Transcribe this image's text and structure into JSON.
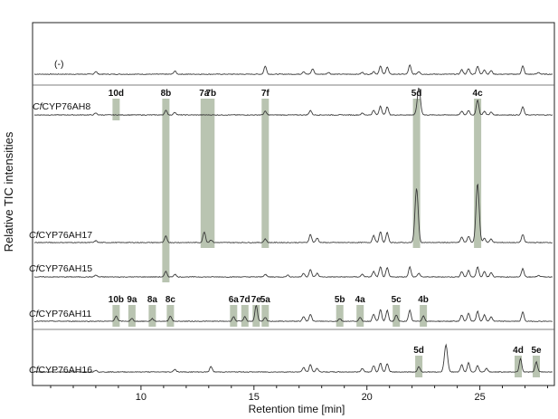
{
  "chart_data": {
    "type": "line",
    "xlabel": "Retention time [min]",
    "ylabel": "Relative TIC intensities",
    "xlim": [
      5.2,
      28.3
    ],
    "x_ticks": [
      10,
      15,
      20,
      25
    ],
    "x_tick_labels": [
      "10",
      "15",
      "20",
      "25"
    ],
    "grid": false,
    "legend": "none",
    "trace_color": "#3a3a3a",
    "band_color": "#b9c4b1",
    "series": [
      {
        "name": "(-)",
        "name_prefix": "",
        "name_suffix": "(-)",
        "baseline": 0.0,
        "peaks": [
          [
            8.0,
            0.3
          ],
          [
            11.5,
            0.35
          ],
          [
            15.5,
            0.9
          ],
          [
            17.2,
            0.3
          ],
          [
            17.6,
            0.6
          ],
          [
            18.3,
            0.2
          ],
          [
            19.8,
            0.2
          ],
          [
            20.3,
            0.3
          ],
          [
            20.6,
            0.9
          ],
          [
            20.9,
            0.8
          ],
          [
            21.9,
            1.0
          ],
          [
            22.3,
            0.3
          ],
          [
            24.2,
            0.5
          ],
          [
            24.5,
            0.6
          ],
          [
            24.9,
            0.9
          ],
          [
            25.2,
            0.5
          ],
          [
            25.5,
            0.4
          ],
          [
            26.9,
            0.9
          ],
          [
            27.6,
            0.2
          ]
        ]
      },
      {
        "name": "CfCYP76AH8",
        "name_prefix": "Cf",
        "name_suffix": "CYP76AH8",
        "baseline": 0.0,
        "peaks": [
          [
            8.0,
            0.2
          ],
          [
            11.1,
            0.5
          ],
          [
            11.5,
            0.3
          ],
          [
            15.5,
            0.4
          ],
          [
            17.5,
            0.5
          ],
          [
            19.8,
            0.2
          ],
          [
            20.3,
            0.5
          ],
          [
            20.6,
            1.0
          ],
          [
            20.9,
            0.9
          ],
          [
            22.3,
            3.0
          ],
          [
            24.2,
            0.4
          ],
          [
            24.5,
            0.5
          ],
          [
            24.9,
            1.7
          ],
          [
            25.2,
            0.4
          ],
          [
            25.5,
            0.3
          ],
          [
            26.9,
            0.9
          ]
        ]
      },
      {
        "name": "CfCYP76AH17",
        "name_prefix": "Cf",
        "name_suffix": "CYP76AH17",
        "baseline": 0.0,
        "peaks": [
          [
            8.0,
            0.2
          ],
          [
            11.1,
            0.7
          ],
          [
            12.8,
            1.2
          ],
          [
            13.1,
            0.3
          ],
          [
            15.5,
            0.4
          ],
          [
            17.5,
            0.9
          ],
          [
            17.8,
            0.5
          ],
          [
            20.3,
            0.8
          ],
          [
            20.6,
            1.2
          ],
          [
            20.9,
            1.1
          ],
          [
            22.2,
            6.0
          ],
          [
            24.2,
            0.6
          ],
          [
            24.5,
            0.7
          ],
          [
            24.9,
            6.5
          ],
          [
            25.2,
            0.5
          ],
          [
            25.5,
            0.4
          ],
          [
            26.9,
            0.9
          ]
        ]
      },
      {
        "name": "CfCYP76AH15",
        "name_prefix": "Cf",
        "name_suffix": "CYP76AH15",
        "baseline": 0.0,
        "peaks": [
          [
            8.0,
            0.2
          ],
          [
            11.1,
            0.6
          ],
          [
            11.5,
            0.3
          ],
          [
            15.5,
            0.3
          ],
          [
            16.5,
            0.2
          ],
          [
            17.2,
            0.4
          ],
          [
            17.5,
            0.8
          ],
          [
            17.8,
            0.4
          ],
          [
            19.8,
            0.3
          ],
          [
            20.3,
            0.6
          ],
          [
            20.6,
            1.1
          ],
          [
            20.9,
            1.0
          ],
          [
            21.9,
            1.1
          ],
          [
            22.3,
            0.4
          ],
          [
            24.2,
            0.6
          ],
          [
            24.5,
            0.7
          ],
          [
            24.9,
            1.1
          ],
          [
            25.2,
            0.6
          ],
          [
            25.5,
            0.5
          ],
          [
            26.9,
            0.9
          ],
          [
            27.6,
            0.2
          ]
        ]
      },
      {
        "name": "CfCYP76AH11",
        "name_prefix": "Cf",
        "name_suffix": "CYP76AH11",
        "baseline": 0.0,
        "peaks": [
          [
            8.9,
            0.6
          ],
          [
            9.6,
            0.3
          ],
          [
            10.5,
            0.3
          ],
          [
            11.3,
            0.6
          ],
          [
            14.1,
            0.5
          ],
          [
            14.6,
            0.5
          ],
          [
            15.1,
            1.8
          ],
          [
            15.5,
            0.4
          ],
          [
            17.2,
            0.5
          ],
          [
            17.5,
            0.8
          ],
          [
            18.8,
            0.3
          ],
          [
            19.7,
            0.4
          ],
          [
            20.3,
            0.8
          ],
          [
            20.6,
            1.3
          ],
          [
            20.9,
            1.2
          ],
          [
            21.3,
            0.7
          ],
          [
            21.9,
            1.2
          ],
          [
            22.5,
            0.6
          ],
          [
            24.2,
            0.7
          ],
          [
            24.5,
            0.9
          ],
          [
            24.9,
            1.1
          ],
          [
            25.2,
            0.7
          ],
          [
            25.5,
            0.5
          ],
          [
            26.9,
            1.0
          ]
        ]
      },
      {
        "name": "CfCYP76AH16",
        "name_prefix": "Cf",
        "name_suffix": "CYP76AH16",
        "baseline": 0.0,
        "peaks": [
          [
            8.0,
            0.2
          ],
          [
            11.5,
            0.3
          ],
          [
            13.1,
            0.6
          ],
          [
            17.2,
            0.5
          ],
          [
            17.5,
            0.8
          ],
          [
            17.8,
            0.4
          ],
          [
            19.8,
            0.4
          ],
          [
            20.3,
            0.7
          ],
          [
            20.6,
            1.0
          ],
          [
            20.9,
            0.9
          ],
          [
            22.3,
            0.6
          ],
          [
            23.5,
            3.0
          ],
          [
            24.2,
            0.8
          ],
          [
            24.5,
            1.0
          ],
          [
            24.9,
            0.7
          ],
          [
            25.3,
            0.4
          ],
          [
            26.8,
            1.5
          ],
          [
            27.5,
            1.1
          ]
        ]
      }
    ],
    "bands": [
      {
        "label": "10d",
        "x": 8.9,
        "from_trace": 1,
        "to_trace": 1
      },
      {
        "label": "8b",
        "x": 11.1,
        "from_trace": 1,
        "to_trace": 3
      },
      {
        "label": "7a",
        "x": 12.8,
        "from_trace": 1,
        "to_trace": 2
      },
      {
        "label": "7b",
        "x": 13.1,
        "from_trace": 1,
        "to_trace": 2
      },
      {
        "label": "7f",
        "x": 15.5,
        "from_trace": 1,
        "to_trace": 2
      },
      {
        "label": "5d",
        "x": 22.2,
        "from_trace": 1,
        "to_trace": 2
      },
      {
        "label": "4c",
        "x": 24.9,
        "from_trace": 1,
        "to_trace": 2
      },
      {
        "label": "10b",
        "x": 8.9,
        "from_trace": 4,
        "to_trace": 4
      },
      {
        "label": "9a",
        "x": 9.6,
        "from_trace": 4,
        "to_trace": 4
      },
      {
        "label": "8a",
        "x": 10.5,
        "from_trace": 4,
        "to_trace": 4
      },
      {
        "label": "8c",
        "x": 11.3,
        "from_trace": 4,
        "to_trace": 4
      },
      {
        "label": "6a",
        "x": 14.1,
        "from_trace": 4,
        "to_trace": 4
      },
      {
        "label": "7d",
        "x": 14.6,
        "from_trace": 4,
        "to_trace": 4
      },
      {
        "label": "7e",
        "x": 15.1,
        "from_trace": 4,
        "to_trace": 4
      },
      {
        "label": "5a",
        "x": 15.5,
        "from_trace": 4,
        "to_trace": 4
      },
      {
        "label": "5b",
        "x": 18.8,
        "from_trace": 4,
        "to_trace": 4
      },
      {
        "label": "4a",
        "x": 19.7,
        "from_trace": 4,
        "to_trace": 4
      },
      {
        "label": "5c",
        "x": 21.3,
        "from_trace": 4,
        "to_trace": 4
      },
      {
        "label": "4b",
        "x": 22.5,
        "from_trace": 4,
        "to_trace": 4
      },
      {
        "label": "5d",
        "x": 22.3,
        "from_trace": 5,
        "to_trace": 5
      },
      {
        "label": "4d",
        "x": 26.7,
        "from_trace": 5,
        "to_trace": 5
      },
      {
        "label": "5e",
        "x": 27.5,
        "from_trace": 5,
        "to_trace": 5
      }
    ]
  }
}
